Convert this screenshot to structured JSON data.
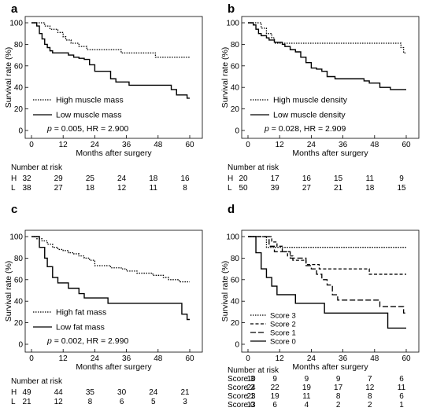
{
  "chart_data": [
    {
      "panel": "a",
      "type": "line",
      "ylabel": "Survival rate (%)",
      "xlabel": "Months after surgery",
      "xticks": [
        0,
        12,
        24,
        36,
        48,
        60
      ],
      "yticks": [
        0,
        20,
        40,
        60,
        80,
        100
      ],
      "xlim": [
        0,
        60
      ],
      "ylim": [
        0,
        100
      ],
      "series": [
        {
          "name": "High muscle mass",
          "style": "dotted",
          "points": [
            [
              0,
              100
            ],
            [
              4,
              100
            ],
            [
              5,
              97
            ],
            [
              7,
              94
            ],
            [
              10,
              91
            ],
            [
              12,
              87
            ],
            [
              13,
              84
            ],
            [
              15,
              81
            ],
            [
              18,
              78
            ],
            [
              21,
              75
            ],
            [
              26,
              75
            ],
            [
              28,
              75
            ],
            [
              32,
              75
            ],
            [
              34,
              72
            ],
            [
              37,
              72
            ],
            [
              38,
              72
            ],
            [
              44,
              72
            ],
            [
              47,
              68
            ],
            [
              54,
              68
            ],
            [
              60,
              68
            ]
          ]
        },
        {
          "name": "Low muscle mass",
          "style": "solid",
          "points": [
            [
              0,
              100
            ],
            [
              1,
              100
            ],
            [
              2,
              97
            ],
            [
              3,
              90
            ],
            [
              4,
              85
            ],
            [
              5,
              80
            ],
            [
              6,
              77
            ],
            [
              7,
              74
            ],
            [
              8,
              72
            ],
            [
              13,
              72
            ],
            [
              14,
              70
            ],
            [
              16,
              68
            ],
            [
              18,
              67
            ],
            [
              20,
              66
            ],
            [
              22,
              61
            ],
            [
              24,
              55
            ],
            [
              29,
              55
            ],
            [
              30,
              48
            ],
            [
              32,
              45
            ],
            [
              35,
              45
            ],
            [
              37,
              42
            ],
            [
              51,
              42
            ],
            [
              53,
              38
            ],
            [
              55,
              33
            ],
            [
              58,
              33
            ],
            [
              59,
              30
            ],
            [
              60,
              30
            ]
          ]
        }
      ],
      "annotation": {
        "p": "p",
        "rest": " = 0.005, HR = 2.900"
      },
      "risk_table": {
        "title": "Number at risk",
        "rows": [
          {
            "label": "H",
            "values": [
              32,
              29,
              25,
              24,
              18,
              16
            ]
          },
          {
            "label": "L",
            "values": [
              38,
              27,
              18,
              12,
              11,
              8
            ]
          }
        ]
      }
    },
    {
      "panel": "b",
      "type": "line",
      "ylabel": "Survival rate (%)",
      "xlabel": "Months after surgery",
      "xticks": [
        0,
        12,
        24,
        36,
        48,
        60
      ],
      "yticks": [
        0,
        20,
        40,
        60,
        80,
        100
      ],
      "xlim": [
        0,
        60
      ],
      "ylim": [
        0,
        100
      ],
      "series": [
        {
          "name": "High muscle density",
          "style": "dotted",
          "points": [
            [
              0,
              100
            ],
            [
              4,
              100
            ],
            [
              5,
              95
            ],
            [
              7,
              90
            ],
            [
              8,
              90
            ],
            [
              9,
              86
            ],
            [
              10,
              81
            ],
            [
              56,
              81
            ],
            [
              58,
              77
            ],
            [
              59,
              72
            ],
            [
              60,
              72
            ]
          ]
        },
        {
          "name": "Low muscle density",
          "style": "solid",
          "points": [
            [
              0,
              100
            ],
            [
              1,
              100
            ],
            [
              2,
              98
            ],
            [
              3,
              94
            ],
            [
              4,
              90
            ],
            [
              5,
              88
            ],
            [
              7,
              86
            ],
            [
              8,
              84
            ],
            [
              10,
              82
            ],
            [
              13,
              80
            ],
            [
              14,
              78
            ],
            [
              16,
              75
            ],
            [
              18,
              73
            ],
            [
              20,
              68
            ],
            [
              22,
              63
            ],
            [
              24,
              58
            ],
            [
              26,
              57
            ],
            [
              28,
              55
            ],
            [
              30,
              50
            ],
            [
              33,
              48
            ],
            [
              42,
              48
            ],
            [
              44,
              46
            ],
            [
              46,
              44
            ],
            [
              50,
              40
            ],
            [
              54,
              38
            ],
            [
              60,
              38
            ]
          ]
        }
      ],
      "annotation": {
        "p": "p",
        "rest": " = 0.028, HR = 2.909"
      },
      "risk_table": {
        "title": "Number at risk",
        "rows": [
          {
            "label": "H",
            "values": [
              20,
              17,
              16,
              15,
              11,
              9
            ]
          },
          {
            "label": "L",
            "values": [
              50,
              39,
              27,
              21,
              18,
              15
            ]
          }
        ]
      }
    },
    {
      "panel": "c",
      "type": "line",
      "ylabel": "Survival rate (%)",
      "xlabel": "Months after surgery",
      "xticks": [
        0,
        12,
        24,
        36,
        48,
        60
      ],
      "yticks": [
        0,
        20,
        40,
        60,
        80,
        100
      ],
      "xlim": [
        0,
        60
      ],
      "ylim": [
        0,
        100
      ],
      "series": [
        {
          "name": "High fat mass",
          "style": "dotted",
          "points": [
            [
              0,
              100
            ],
            [
              2,
              98
            ],
            [
              4,
              96
            ],
            [
              6,
              93
            ],
            [
              8,
              90
            ],
            [
              10,
              88
            ],
            [
              12,
              87
            ],
            [
              14,
              85
            ],
            [
              16,
              84
            ],
            [
              18,
              82
            ],
            [
              20,
              80
            ],
            [
              22,
              78
            ],
            [
              24,
              73
            ],
            [
              28,
              73
            ],
            [
              30,
              71
            ],
            [
              34,
              70
            ],
            [
              36,
              68
            ],
            [
              40,
              66
            ],
            [
              44,
              66
            ],
            [
              46,
              64
            ],
            [
              50,
              62
            ],
            [
              52,
              60
            ],
            [
              56,
              58
            ],
            [
              60,
              58
            ]
          ]
        },
        {
          "name": "Low fat mass",
          "style": "solid",
          "points": [
            [
              0,
              100
            ],
            [
              2,
              100
            ],
            [
              3,
              90
            ],
            [
              5,
              80
            ],
            [
              6,
              72
            ],
            [
              8,
              62
            ],
            [
              10,
              57
            ],
            [
              14,
              52
            ],
            [
              18,
              47
            ],
            [
              20,
              43
            ],
            [
              28,
              43
            ],
            [
              29,
              38
            ],
            [
              46,
              38
            ],
            [
              56,
              38
            ],
            [
              57,
              28
            ],
            [
              59,
              23
            ],
            [
              60,
              23
            ]
          ]
        }
      ],
      "annotation": {
        "p": "p",
        "rest": " = 0.002, HR = 2.990"
      },
      "risk_table": {
        "title": "Number at risk",
        "rows": [
          {
            "label": "H",
            "values": [
              49,
              44,
              35,
              30,
              24,
              21
            ]
          },
          {
            "label": "L",
            "values": [
              21,
              12,
              8,
              6,
              5,
              3
            ]
          }
        ]
      }
    },
    {
      "panel": "d",
      "type": "line",
      "ylabel": "Survival rate (%)",
      "xlabel": "Months after surgery",
      "xticks": [
        0,
        12,
        24,
        36,
        48,
        60
      ],
      "yticks": [
        0,
        20,
        40,
        60,
        80,
        100
      ],
      "xlim": [
        0,
        60
      ],
      "ylim": [
        0,
        100
      ],
      "series": [
        {
          "name": "Score 3",
          "style": "dotted",
          "points": [
            [
              0,
              100
            ],
            [
              6,
              100
            ],
            [
              7,
              90
            ],
            [
              60,
              90
            ]
          ]
        },
        {
          "name": "Score 2",
          "style": "dashshort",
          "points": [
            [
              0,
              100
            ],
            [
              8,
              100
            ],
            [
              9,
              95
            ],
            [
              11,
              91
            ],
            [
              13,
              86
            ],
            [
              15,
              82
            ],
            [
              17,
              78
            ],
            [
              21,
              78
            ],
            [
              22,
              74
            ],
            [
              26,
              74
            ],
            [
              27,
              70
            ],
            [
              44,
              70
            ],
            [
              46,
              65
            ],
            [
              60,
              65
            ]
          ]
        },
        {
          "name": "Score 1",
          "style": "dashlong",
          "points": [
            [
              0,
              100
            ],
            [
              7,
              100
            ],
            [
              8,
              91
            ],
            [
              10,
              86
            ],
            [
              14,
              86
            ],
            [
              16,
              80
            ],
            [
              20,
              80
            ],
            [
              22,
              73
            ],
            [
              24,
              70
            ],
            [
              26,
              65
            ],
            [
              28,
              60
            ],
            [
              30,
              55
            ],
            [
              32,
              46
            ],
            [
              34,
              41
            ],
            [
              48,
              41
            ],
            [
              50,
              35
            ],
            [
              57,
              35
            ],
            [
              59,
              29
            ],
            [
              60,
              29
            ]
          ]
        },
        {
          "name": "Score 0",
          "style": "solid",
          "points": [
            [
              0,
              100
            ],
            [
              2,
              100
            ],
            [
              3,
              85
            ],
            [
              5,
              70
            ],
            [
              7,
              62
            ],
            [
              9,
              54
            ],
            [
              11,
              46
            ],
            [
              16,
              46
            ],
            [
              18,
              38
            ],
            [
              28,
              38
            ],
            [
              29,
              29
            ],
            [
              52,
              29
            ],
            [
              53,
              15
            ],
            [
              60,
              15
            ]
          ]
        }
      ],
      "risk_table": {
        "title": "Number at risk",
        "rows": [
          {
            "label": "Score 3",
            "values": [
              10,
              9,
              9,
              9,
              7,
              6
            ]
          },
          {
            "label": "Score 2",
            "values": [
              24,
              22,
              19,
              17,
              12,
              11
            ]
          },
          {
            "label": "Score 1",
            "values": [
              23,
              19,
              11,
              8,
              8,
              6
            ]
          },
          {
            "label": "Score 0",
            "values": [
              13,
              6,
              4,
              2,
              2,
              1
            ]
          }
        ]
      }
    }
  ]
}
